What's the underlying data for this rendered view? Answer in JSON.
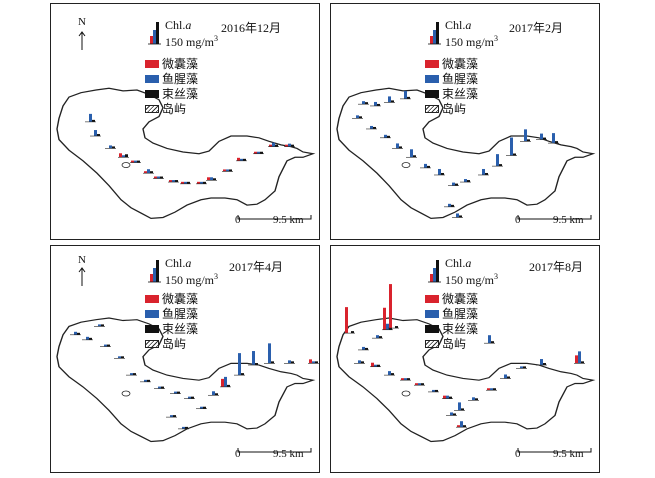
{
  "colors": {
    "micro": "#d9232d",
    "fish": "#2a5fad",
    "bundle": "#111111",
    "island": "#ffffff",
    "outline": "#222222"
  },
  "legend": {
    "chl_name": "Chl.",
    "chl_italic": "a",
    "chl_scale": "150 mg/m",
    "chl_sup": "3",
    "items": [
      "微囊藻",
      "鱼腥藻",
      "束丝藻",
      "岛屿"
    ]
  },
  "north_label": "N",
  "scale": {
    "zero": "0",
    "dist": "9.5 km"
  },
  "panels": [
    {
      "date": "2016年12月"
    },
    {
      "date": "2017年2月"
    },
    {
      "date": "2017年4月"
    },
    {
      "date": "2017年8月"
    }
  ]
}
